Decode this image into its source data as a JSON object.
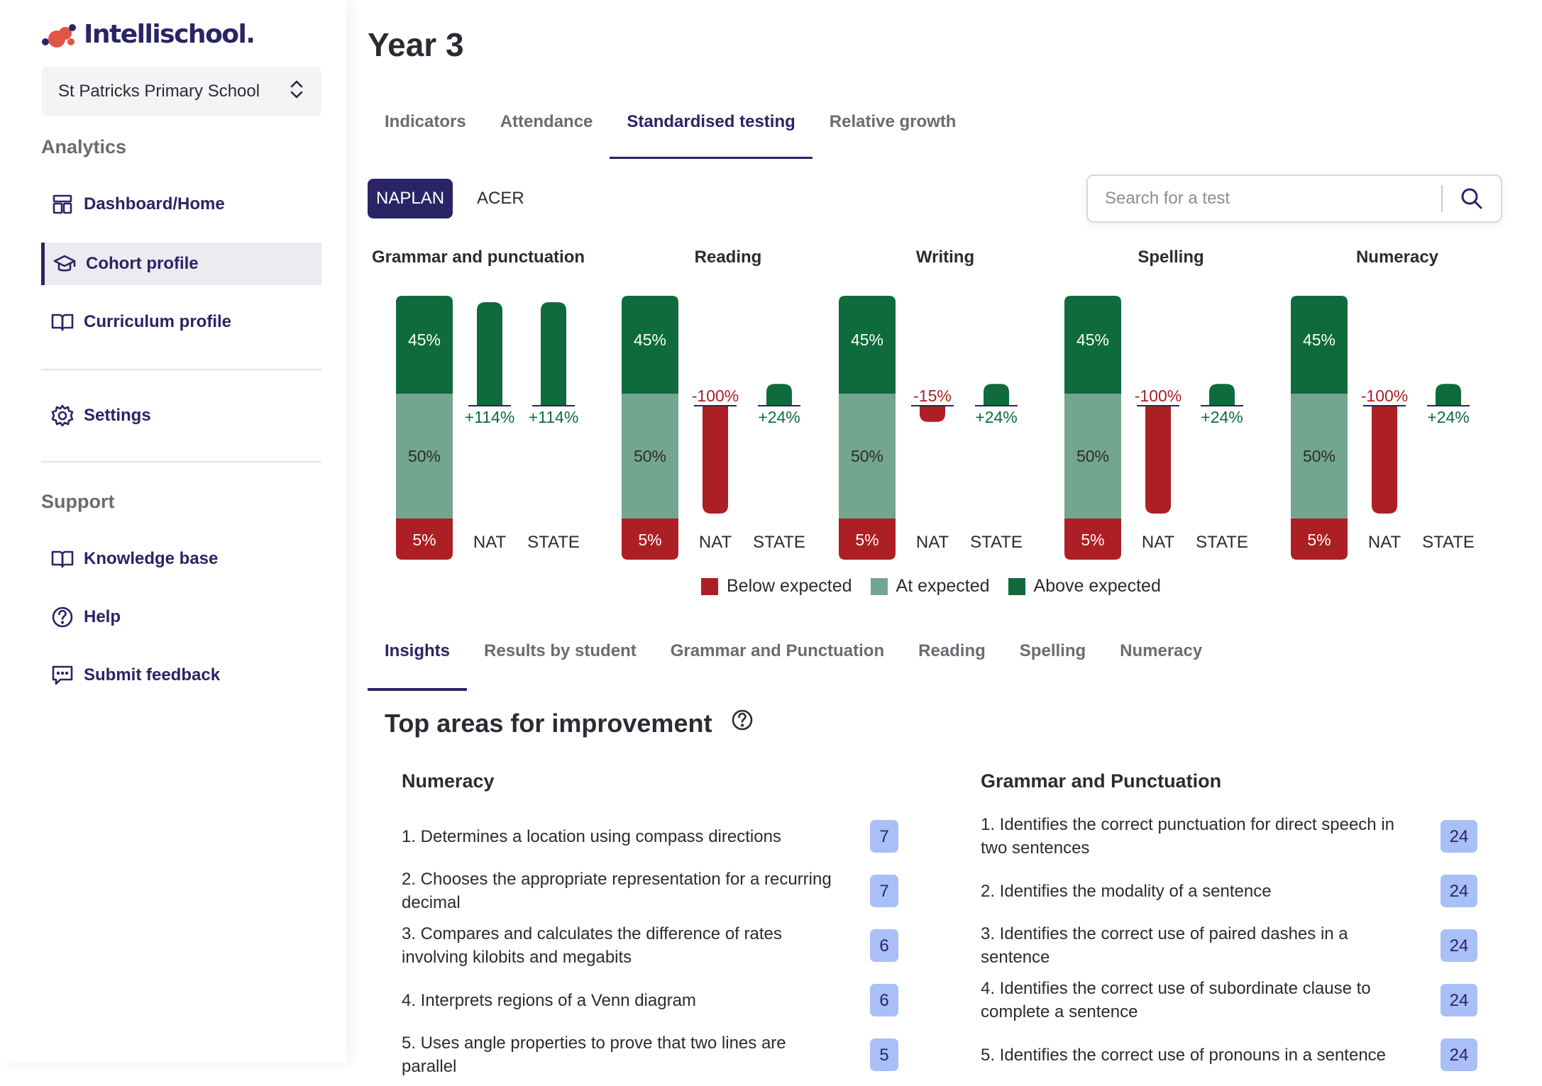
{
  "app": {
    "brand": "Intellischool.",
    "school": "St Patricks Primary School"
  },
  "sidebar": {
    "analytics_title": "Analytics",
    "support_title": "Support",
    "analytics_items": [
      {
        "label": "Dashboard/Home",
        "icon": "dashboard-icon"
      },
      {
        "label": "Cohort profile",
        "icon": "graduation-cap-icon",
        "active": true
      },
      {
        "label": "Curriculum profile",
        "icon": "book-open-icon"
      }
    ],
    "settings_item": {
      "label": "Settings",
      "icon": "gear-icon"
    },
    "support_items": [
      {
        "label": "Knowledge base",
        "icon": "book-open-icon"
      },
      {
        "label": "Help",
        "icon": "question-circle-icon"
      },
      {
        "label": "Submit feedback",
        "icon": "chat-bubble-icon"
      }
    ]
  },
  "page": {
    "title": "Year 3",
    "tabs": [
      "Indicators",
      "Attendance",
      "Standardised testing",
      "Relative growth"
    ],
    "active_tab": "Standardised testing",
    "test_types": [
      "NAPLAN",
      "ACER"
    ],
    "active_test_type": "NAPLAN",
    "search_placeholder": "Search for a test"
  },
  "colors": {
    "below": "#ac1f24",
    "at": "#74a58e",
    "above": "#0f6b3b",
    "brand": "#2a2466",
    "badge": "#a8c0f5"
  },
  "chart_data": {
    "type": "bar",
    "groups": [
      {
        "title": "Grammar and punctuation",
        "distribution": {
          "above": "45%",
          "at": "50%",
          "below": "5%"
        },
        "nat": 114,
        "nat_label": "+114%",
        "state": 114,
        "state_label": "+114%"
      },
      {
        "title": "Reading",
        "distribution": {
          "above": "45%",
          "at": "50%",
          "below": "5%"
        },
        "nat": -100,
        "nat_label": "-100%",
        "state": 24,
        "state_label": "+24%"
      },
      {
        "title": "Writing",
        "distribution": {
          "above": "45%",
          "at": "50%",
          "below": "5%"
        },
        "nat": -15,
        "nat_label": "-15%",
        "state": 24,
        "state_label": "+24%"
      },
      {
        "title": "Spelling",
        "distribution": {
          "above": "45%",
          "at": "50%",
          "below": "5%"
        },
        "nat": -100,
        "nat_label": "-100%",
        "state": 24,
        "state_label": "+24%"
      },
      {
        "title": "Numeracy",
        "distribution": {
          "above": "45%",
          "at": "50%",
          "below": "5%"
        },
        "nat": -100,
        "nat_label": "-100%",
        "state": 24,
        "state_label": "+24%"
      }
    ],
    "comparison_labels": [
      "NAT",
      "STATE"
    ],
    "legend": [
      "Below expected",
      "At expected",
      "Above expected"
    ]
  },
  "insights": {
    "tabs": [
      "Insights",
      "Results by student",
      "Grammar and Punctuation",
      "Reading",
      "Spelling",
      "Numeracy"
    ],
    "active_tab": "Insights",
    "section_title": "Top areas for improvement",
    "columns": [
      {
        "title": "Numeracy",
        "items": [
          {
            "text": "1. Determines a location using compass directions",
            "count": "7"
          },
          {
            "text": "2. Chooses the appropriate representation for a recurring decimal",
            "count": "7"
          },
          {
            "text": "3. Compares and calculates the difference of rates involving kilobits and megabits",
            "count": "6"
          },
          {
            "text": "4. Interprets regions of a Venn diagram",
            "count": "6"
          },
          {
            "text": "5. Uses angle properties to prove that two lines are parallel",
            "count": "5"
          }
        ]
      },
      {
        "title": "Grammar and Punctuation",
        "items": [
          {
            "text": "1. Identifies the correct punctuation for direct speech in two sentences",
            "count": "24"
          },
          {
            "text": "2. Identifies the modality of a sentence",
            "count": "24"
          },
          {
            "text": "3. Identifies the correct use of paired dashes in a sentence",
            "count": "24"
          },
          {
            "text": "4. Identifies the correct use of subordinate clause to complete a sentence",
            "count": "24"
          },
          {
            "text": "5. Identifies the correct use of pronouns in a sentence",
            "count": "24"
          }
        ]
      }
    ]
  }
}
